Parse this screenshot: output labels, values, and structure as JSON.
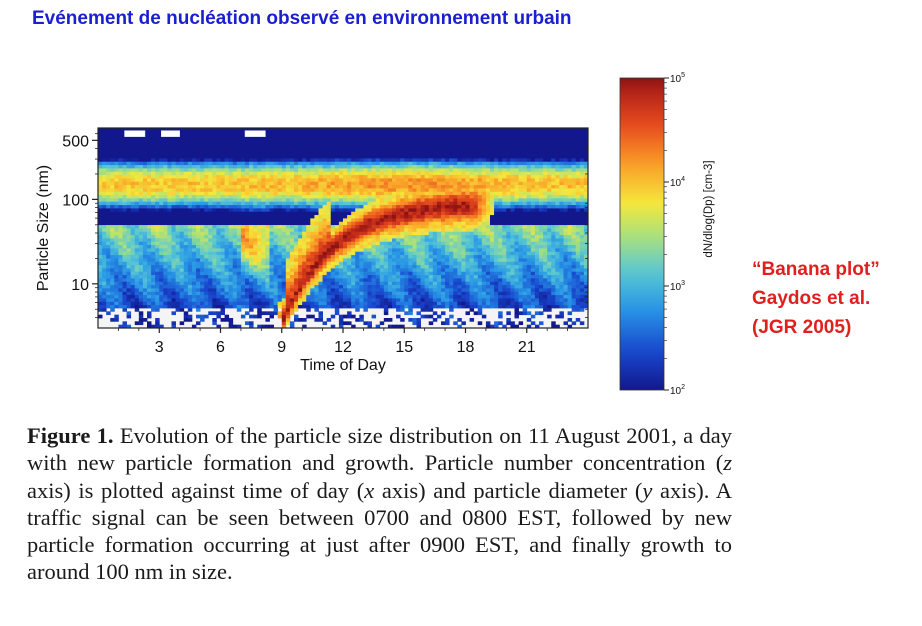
{
  "header": {
    "title": "Evénement de nucléation observé en environnement urbain"
  },
  "annotation": {
    "lines": [
      "“Banana plot”",
      "Gaydos et al.",
      "(JGR 2005)"
    ],
    "color": "#e0201f"
  },
  "caption": {
    "figure_label": "Figure 1.",
    "t1": "Evolution of the particle size distribution on 11 August 2001, a day with new particle formation and growth. Particle number concentration (",
    "z": "z",
    "t2": " axis) is plotted against time of day (",
    "x": "x",
    "t3": " axis) and particle diameter (",
    "y": "y",
    "t4": " axis). A traffic signal can be seen between 0700 and 0800 EST, followed by new particle formation occurring at just after 0900 EST, and finally growth to around 100 nm in size."
  },
  "chart_data": {
    "type": "heatmap",
    "xlabel": "Time of Day",
    "ylabel": "Particle Size (nm)",
    "x_ticks": [
      "3",
      "6",
      "9",
      "12",
      "15",
      "18",
      "21"
    ],
    "x_tick_values": [
      3,
      6,
      9,
      12,
      15,
      18,
      21
    ],
    "xlim": [
      0,
      24
    ],
    "y_scale": "log",
    "y_ticks": [
      "10",
      "100",
      "500"
    ],
    "y_tick_values": [
      10,
      100,
      500
    ],
    "ylim": [
      3,
      700
    ],
    "colorbar": {
      "label": "dN/dlog(Dp) [cm-3]",
      "scale": "log",
      "range": [
        100,
        100000
      ],
      "ticks": [
        {
          "base": "10",
          "exp": "2",
          "value": 100
        },
        {
          "base": "10",
          "exp": "3",
          "value": 1000
        },
        {
          "base": "10",
          "exp": "4",
          "value": 10000
        },
        {
          "base": "10",
          "exp": "5",
          "value": 100000
        }
      ]
    },
    "description_features": {
      "traffic_signal_hours": [
        7,
        8
      ],
      "nucleation_start_hour": 9.1,
      "growth_end_size_nm": 100,
      "growth_end_hour": 18.5
    }
  }
}
